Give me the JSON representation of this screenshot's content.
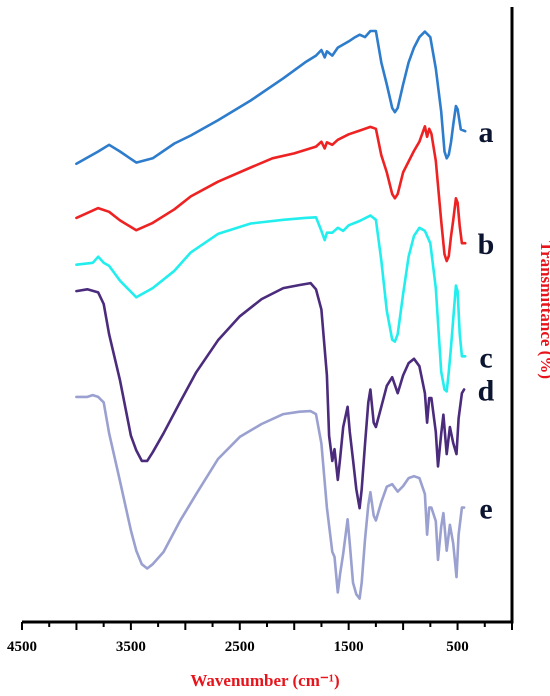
{
  "chart_data": {
    "type": "line",
    "title": "",
    "xlabel": "Wavenumber (cm⁻¹)",
    "ylabel": "Transmittance (%)",
    "x_reversed": true,
    "xlim": [
      4500,
      0
    ],
    "xticks": [
      4500,
      3500,
      2500,
      1500,
      500
    ],
    "xtick_labels": [
      "4500",
      "3500",
      "2500",
      "1500",
      "500"
    ],
    "ylim": [
      0,
      100
    ],
    "yticks_shown": false,
    "grid": false,
    "legend": "inline-right",
    "series": [
      {
        "name": "a",
        "color": "#2e7ccc",
        "points": [
          [
            4000,
            74.5
          ],
          [
            3800,
            76.5
          ],
          [
            3700,
            77.6
          ],
          [
            3600,
            76.5
          ],
          [
            3450,
            74.7
          ],
          [
            3300,
            75.4
          ],
          [
            3100,
            77.8
          ],
          [
            2950,
            79.1
          ],
          [
            2700,
            81.6
          ],
          [
            2400,
            84.8
          ],
          [
            2100,
            88.4
          ],
          [
            1900,
            91
          ],
          [
            1800,
            92.1
          ],
          [
            1750,
            93
          ],
          [
            1720,
            91.8
          ],
          [
            1700,
            92.8
          ],
          [
            1650,
            92.1
          ],
          [
            1600,
            93.4
          ],
          [
            1500,
            94.4
          ],
          [
            1450,
            95
          ],
          [
            1400,
            95.5
          ],
          [
            1350,
            95.1
          ],
          [
            1300,
            96.1
          ],
          [
            1250,
            96.1
          ],
          [
            1200,
            91
          ],
          [
            1150,
            87.4
          ],
          [
            1100,
            83.6
          ],
          [
            1075,
            82.9
          ],
          [
            1050,
            83.6
          ],
          [
            1000,
            87.4
          ],
          [
            950,
            91
          ],
          [
            900,
            93.4
          ],
          [
            850,
            95.1
          ],
          [
            800,
            96
          ],
          [
            750,
            95.1
          ],
          [
            700,
            90
          ],
          [
            650,
            83
          ],
          [
            620,
            76.5
          ],
          [
            600,
            75.4
          ],
          [
            580,
            76
          ],
          [
            560,
            78
          ],
          [
            540,
            80.8
          ],
          [
            515,
            83.9
          ],
          [
            500,
            83.4
          ],
          [
            470,
            80.1
          ],
          [
            430,
            79.8
          ]
        ]
      },
      {
        "name": "b",
        "color": "#ee2222",
        "points": [
          [
            4000,
            65.7
          ],
          [
            3800,
            67.3
          ],
          [
            3700,
            66.7
          ],
          [
            3600,
            65.3
          ],
          [
            3450,
            63.7
          ],
          [
            3300,
            64.9
          ],
          [
            3100,
            67.1
          ],
          [
            2950,
            69.2
          ],
          [
            2700,
            71.6
          ],
          [
            2400,
            73.9
          ],
          [
            2200,
            75.4
          ],
          [
            2000,
            76.2
          ],
          [
            1800,
            77.3
          ],
          [
            1750,
            78.1
          ],
          [
            1720,
            77
          ],
          [
            1700,
            78
          ],
          [
            1650,
            77.6
          ],
          [
            1600,
            78.4
          ],
          [
            1500,
            79.3
          ],
          [
            1400,
            79.9
          ],
          [
            1300,
            80.5
          ],
          [
            1250,
            80.2
          ],
          [
            1200,
            75.9
          ],
          [
            1150,
            73.1
          ],
          [
            1100,
            69.6
          ],
          [
            1075,
            68.9
          ],
          [
            1050,
            69.6
          ],
          [
            1000,
            73.1
          ],
          [
            900,
            76.6
          ],
          [
            850,
            78.1
          ],
          [
            800,
            80.6
          ],
          [
            780,
            78.9
          ],
          [
            760,
            80.2
          ],
          [
            740,
            79.4
          ],
          [
            700,
            75
          ],
          [
            650,
            65.2
          ],
          [
            620,
            59.8
          ],
          [
            600,
            58.7
          ],
          [
            580,
            59.5
          ],
          [
            560,
            62.7
          ],
          [
            540,
            65.3
          ],
          [
            515,
            68.9
          ],
          [
            500,
            68.2
          ],
          [
            480,
            64.4
          ],
          [
            460,
            61.6
          ],
          [
            430,
            61.6
          ]
        ]
      },
      {
        "name": "c",
        "color": "#22eeee",
        "points": [
          [
            4000,
            58.1
          ],
          [
            3850,
            58.4
          ],
          [
            3800,
            59.4
          ],
          [
            3750,
            58.4
          ],
          [
            3700,
            57.9
          ],
          [
            3600,
            55.5
          ],
          [
            3450,
            52.8
          ],
          [
            3300,
            54.3
          ],
          [
            3100,
            57.1
          ],
          [
            2950,
            60.1
          ],
          [
            2700,
            63.1
          ],
          [
            2400,
            64.8
          ],
          [
            2100,
            65.4
          ],
          [
            1900,
            65.7
          ],
          [
            1800,
            65.8
          ],
          [
            1750,
            63.6
          ],
          [
            1720,
            62.1
          ],
          [
            1700,
            63.3
          ],
          [
            1650,
            63.3
          ],
          [
            1600,
            64.1
          ],
          [
            1550,
            63.6
          ],
          [
            1500,
            64.5
          ],
          [
            1400,
            65.2
          ],
          [
            1300,
            66.1
          ],
          [
            1250,
            65.4
          ],
          [
            1200,
            58.8
          ],
          [
            1150,
            50.6
          ],
          [
            1100,
            45.9
          ],
          [
            1075,
            45.6
          ],
          [
            1050,
            46.8
          ],
          [
            1000,
            53.3
          ],
          [
            950,
            59.4
          ],
          [
            900,
            62.8
          ],
          [
            850,
            64.1
          ],
          [
            800,
            63.6
          ],
          [
            750,
            61.6
          ],
          [
            700,
            54.3
          ],
          [
            650,
            40.7
          ],
          [
            620,
            37.8
          ],
          [
            600,
            37.5
          ],
          [
            580,
            40.7
          ],
          [
            560,
            44.7
          ],
          [
            540,
            49.2
          ],
          [
            515,
            54.7
          ],
          [
            500,
            53.8
          ],
          [
            480,
            46.9
          ],
          [
            460,
            43.2
          ],
          [
            430,
            43.2
          ]
        ]
      },
      {
        "name": "d",
        "color": "#4b2b7c",
        "points": [
          [
            4000,
            53.8
          ],
          [
            3900,
            54.1
          ],
          [
            3800,
            53.6
          ],
          [
            3750,
            51.7
          ],
          [
            3700,
            46.8
          ],
          [
            3600,
            39.3
          ],
          [
            3500,
            30.3
          ],
          [
            3450,
            27.9
          ],
          [
            3400,
            26.2
          ],
          [
            3350,
            26.2
          ],
          [
            3300,
            27.6
          ],
          [
            3200,
            30.7
          ],
          [
            3050,
            35.7
          ],
          [
            2900,
            40.6
          ],
          [
            2700,
            45.8
          ],
          [
            2500,
            49.7
          ],
          [
            2300,
            52.5
          ],
          [
            2100,
            54.3
          ],
          [
            1950,
            54.8
          ],
          [
            1850,
            55.1
          ],
          [
            1800,
            54.1
          ],
          [
            1750,
            50.8
          ],
          [
            1700,
            40.1
          ],
          [
            1680,
            30.3
          ],
          [
            1650,
            26.2
          ],
          [
            1630,
            28.1
          ],
          [
            1600,
            23.1
          ],
          [
            1580,
            26.4
          ],
          [
            1550,
            31.7
          ],
          [
            1510,
            35
          ],
          [
            1490,
            30.9
          ],
          [
            1460,
            26.4
          ],
          [
            1430,
            21.6
          ],
          [
            1400,
            18.5
          ],
          [
            1380,
            21.6
          ],
          [
            1350,
            28.9
          ],
          [
            1320,
            35.7
          ],
          [
            1300,
            37.8
          ],
          [
            1270,
            32.4
          ],
          [
            1250,
            31.7
          ],
          [
            1200,
            35
          ],
          [
            1150,
            38.4
          ],
          [
            1100,
            39.8
          ],
          [
            1050,
            37.2
          ],
          [
            1000,
            40.1
          ],
          [
            950,
            42.1
          ],
          [
            900,
            42.8
          ],
          [
            850,
            41.6
          ],
          [
            800,
            37.2
          ],
          [
            780,
            32.4
          ],
          [
            760,
            36.4
          ],
          [
            740,
            36.4
          ],
          [
            700,
            30.9
          ],
          [
            680,
            25.3
          ],
          [
            650,
            30.6
          ],
          [
            630,
            33.7
          ],
          [
            600,
            27.3
          ],
          [
            570,
            31.7
          ],
          [
            540,
            29.1
          ],
          [
            510,
            27.3
          ],
          [
            490,
            33.1
          ],
          [
            460,
            37.2
          ],
          [
            440,
            37.8
          ]
        ]
      },
      {
        "name": "e",
        "color": "#9aa0cf",
        "points": [
          [
            4000,
            36.6
          ],
          [
            3900,
            36.6
          ],
          [
            3850,
            36.9
          ],
          [
            3800,
            36.6
          ],
          [
            3750,
            35.7
          ],
          [
            3700,
            30.7
          ],
          [
            3600,
            22.9
          ],
          [
            3500,
            14.9
          ],
          [
            3450,
            11.6
          ],
          [
            3400,
            9.4
          ],
          [
            3350,
            8.7
          ],
          [
            3300,
            9.4
          ],
          [
            3200,
            11.4
          ],
          [
            3050,
            16.4
          ],
          [
            2900,
            20.8
          ],
          [
            2700,
            26.5
          ],
          [
            2500,
            30.1
          ],
          [
            2300,
            32.2
          ],
          [
            2100,
            33.8
          ],
          [
            1950,
            34.2
          ],
          [
            1850,
            34.3
          ],
          [
            1800,
            33.8
          ],
          [
            1750,
            29
          ],
          [
            1700,
            18.6
          ],
          [
            1650,
            11.4
          ],
          [
            1630,
            10.6
          ],
          [
            1600,
            4.8
          ],
          [
            1580,
            7.7
          ],
          [
            1550,
            11.1
          ],
          [
            1510,
            16.7
          ],
          [
            1490,
            12.7
          ],
          [
            1460,
            6.4
          ],
          [
            1430,
            4.5
          ],
          [
            1400,
            3.8
          ],
          [
            1380,
            6.4
          ],
          [
            1350,
            13.4
          ],
          [
            1320,
            19
          ],
          [
            1300,
            21.1
          ],
          [
            1270,
            17.3
          ],
          [
            1250,
            16.5
          ],
          [
            1200,
            19.5
          ],
          [
            1150,
            22
          ],
          [
            1100,
            22.4
          ],
          [
            1050,
            21.2
          ],
          [
            1000,
            22.1
          ],
          [
            950,
            23.4
          ],
          [
            900,
            23.7
          ],
          [
            850,
            23.4
          ],
          [
            800,
            20.8
          ],
          [
            780,
            14.2
          ],
          [
            760,
            18.6
          ],
          [
            740,
            18.6
          ],
          [
            700,
            16.4
          ],
          [
            680,
            10.1
          ],
          [
            650,
            15.5
          ],
          [
            630,
            17.7
          ],
          [
            600,
            11.6
          ],
          [
            570,
            15.8
          ],
          [
            540,
            12.8
          ],
          [
            510,
            7.3
          ],
          [
            490,
            14.2
          ],
          [
            460,
            18.6
          ],
          [
            440,
            18.6
          ]
        ]
      }
    ]
  }
}
